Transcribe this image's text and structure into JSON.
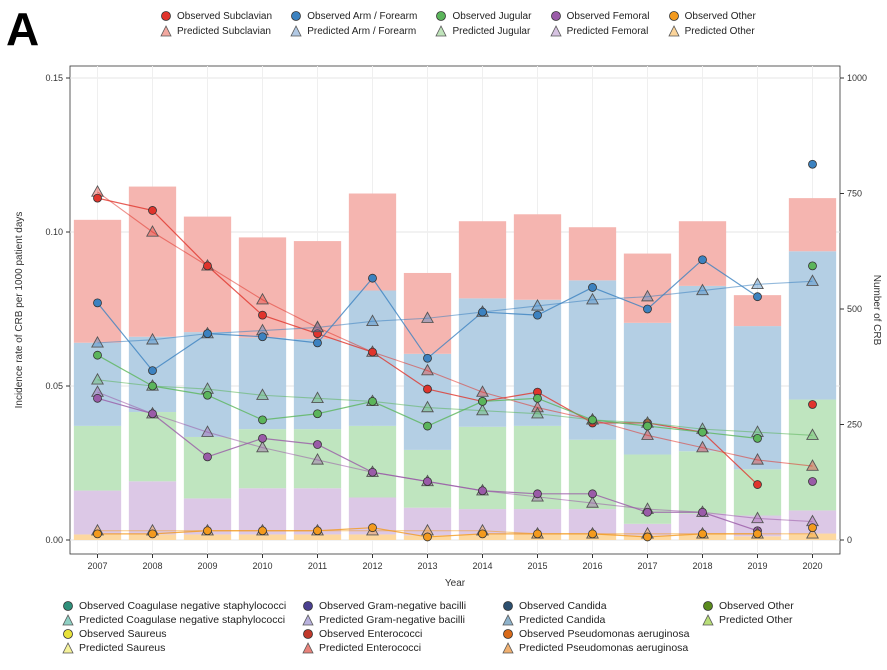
{
  "panel_label": "A",
  "chart_data": {
    "type": "bar",
    "x": [
      "2007",
      "2008",
      "2009",
      "2010",
      "2011",
      "2012",
      "2013",
      "2014",
      "2015",
      "2016",
      "2017",
      "2018",
      "2019",
      "2020"
    ],
    "xlabel": "Year",
    "ylabel": "Incidence rate of CRB per 1000 patient days",
    "y2label": "Number of CRB",
    "ylim": [
      0,
      0.15
    ],
    "y_ticks": [
      "0.00",
      "0.05",
      "0.10",
      "0.15"
    ],
    "y2lim": [
      0,
      1000
    ],
    "y2_ticks": [
      "0",
      "250",
      "500",
      "750",
      "1000"
    ],
    "grid": true,
    "bars_axis": "right",
    "bar_stacks": [
      {
        "name": "Pseudomonas aeruginosa",
        "color": "#fdd8a0",
        "values": [
          12,
          12,
          12,
          12,
          12,
          12,
          10,
          12,
          12,
          12,
          10,
          12,
          8,
          14
        ]
      },
      {
        "name": "Gram-negative bacilli",
        "color": "#dcc8e6",
        "values": [
          95,
          115,
          78,
          100,
          100,
          80,
          60,
          55,
          55,
          55,
          25,
          45,
          45,
          50
        ]
      },
      {
        "name": "Coagulase negative staphylococci",
        "color": "#bfe5bf",
        "values": [
          140,
          150,
          133,
          128,
          128,
          155,
          125,
          178,
          180,
          150,
          150,
          135,
          100,
          240
        ]
      },
      {
        "name": "Candida",
        "color": "#b4cfe4",
        "values": [
          180,
          163,
          227,
          198,
          195,
          293,
          208,
          278,
          273,
          345,
          285,
          358,
          310,
          321
        ]
      },
      {
        "name": "Enterococci",
        "color": "#f5b5b0",
        "values": [
          266,
          325,
          250,
          217,
          212,
          210,
          175,
          167,
          185,
          115,
          150,
          140,
          67,
          115
        ]
      }
    ],
    "series": [
      {
        "name": "Subclavian",
        "color": "#e0342c",
        "observed": [
          0.111,
          0.107,
          0.089,
          0.073,
          0.067,
          0.061,
          0.049,
          0.045,
          0.048,
          0.038,
          0.038,
          0.035,
          0.018,
          0.044
        ],
        "predicted": [
          0.113,
          0.1,
          0.089,
          0.078,
          0.069,
          0.061,
          0.055,
          0.048,
          0.043,
          0.039,
          0.034,
          0.03,
          0.026,
          0.024
        ]
      },
      {
        "name": "Arm / Forearm",
        "color": "#3c82c0",
        "observed": [
          0.077,
          0.055,
          0.067,
          0.066,
          0.064,
          0.085,
          0.059,
          0.074,
          0.073,
          0.082,
          0.075,
          0.091,
          0.079,
          0.122
        ],
        "predicted": [
          0.064,
          0.065,
          0.067,
          0.068,
          0.069,
          0.071,
          0.072,
          0.074,
          0.076,
          0.078,
          0.079,
          0.081,
          0.083,
          0.084
        ]
      },
      {
        "name": "Jugular",
        "color": "#5bb55b",
        "observed": [
          0.06,
          0.05,
          0.047,
          0.039,
          0.041,
          0.045,
          0.037,
          0.045,
          0.046,
          0.039,
          0.037,
          0.035,
          0.033,
          0.089
        ],
        "predicted": [
          0.052,
          0.05,
          0.049,
          0.047,
          0.046,
          0.045,
          0.043,
          0.042,
          0.041,
          0.039,
          0.038,
          0.036,
          0.035,
          0.034
        ]
      },
      {
        "name": "Femoral",
        "color": "#9a5ba8",
        "observed": [
          0.046,
          0.041,
          0.027,
          0.033,
          0.031,
          0.022,
          0.019,
          0.016,
          0.015,
          0.015,
          0.009,
          0.009,
          0.003,
          0.019
        ],
        "predicted": [
          0.048,
          0.041,
          0.035,
          0.03,
          0.026,
          0.022,
          0.019,
          0.016,
          0.014,
          0.012,
          0.01,
          0.009,
          0.007,
          0.006
        ]
      },
      {
        "name": "Other",
        "color": "#f39a1e",
        "observed": [
          0.002,
          0.002,
          0.003,
          0.003,
          0.003,
          0.004,
          0.001,
          0.002,
          0.002,
          0.002,
          0.001,
          0.002,
          0.002,
          0.004
        ],
        "predicted": [
          0.003,
          0.003,
          0.003,
          0.003,
          0.003,
          0.003,
          0.003,
          0.003,
          0.002,
          0.002,
          0.002,
          0.002,
          0.002,
          0.002
        ]
      }
    ],
    "legend_top": [
      {
        "label": "Observed Subclavian",
        "shape": "circle",
        "color": "#e0342c"
      },
      {
        "label": "Observed Arm / Forearm",
        "shape": "circle",
        "color": "#3c82c0"
      },
      {
        "label": "Observed Jugular",
        "shape": "circle",
        "color": "#5bb55b"
      },
      {
        "label": "Observed Femoral",
        "shape": "circle",
        "color": "#9a5ba8"
      },
      {
        "label": "Observed Other",
        "shape": "circle",
        "color": "#f39a1e"
      },
      {
        "label": "Predicted Subclavian",
        "shape": "triangle",
        "color": "#f3a8a0"
      },
      {
        "label": "Predicted Arm / Forearm",
        "shape": "triangle",
        "color": "#b2c9e4"
      },
      {
        "label": "Predicted Jugular",
        "shape": "triangle",
        "color": "#bfe3ba"
      },
      {
        "label": "Predicted Femoral",
        "shape": "triangle",
        "color": "#d7c3e2"
      },
      {
        "label": "Predicted Other",
        "shape": "triangle",
        "color": "#fbd49a"
      }
    ],
    "legend_bottom": [
      {
        "label": "Observed Coagulase negative staphylococci",
        "shape": "circle",
        "color": "#2f8f7a"
      },
      {
        "label": "Observed Gram-negative bacilli",
        "shape": "circle",
        "color": "#4a4090"
      },
      {
        "label": "Observed Candida",
        "shape": "circle",
        "color": "#2c4f6f"
      },
      {
        "label": "Observed Other",
        "shape": "circle",
        "color": "#5a8a1e"
      },
      {
        "label": "Predicted Coagulase negative staphylococci",
        "shape": "triangle",
        "color": "#8fd0c4"
      },
      {
        "label": "Predicted Gram-negative bacilli",
        "shape": "triangle",
        "color": "#b9b2de"
      },
      {
        "label": "Predicted Candida",
        "shape": "triangle",
        "color": "#8fb3cc"
      },
      {
        "label": "Predicted Other",
        "shape": "triangle",
        "color": "#b8de78"
      },
      {
        "label": "Observed Saureus",
        "shape": "circle",
        "color": "#e8e23a"
      },
      {
        "label": "Observed Enterococci",
        "shape": "circle",
        "color": "#c0392b"
      },
      {
        "label": "Observed Pseudomonas aeruginosa",
        "shape": "circle",
        "color": "#d86a1a"
      },
      {
        "label": "",
        "shape": "none",
        "color": ""
      },
      {
        "label": "Predicted Saureus",
        "shape": "triangle",
        "color": "#f5f29a"
      },
      {
        "label": "Predicted Enterococci",
        "shape": "triangle",
        "color": "#e8827a"
      },
      {
        "label": "Predicted Pseudomonas aeruginosa",
        "shape": "triangle",
        "color": "#f0b070"
      }
    ]
  }
}
